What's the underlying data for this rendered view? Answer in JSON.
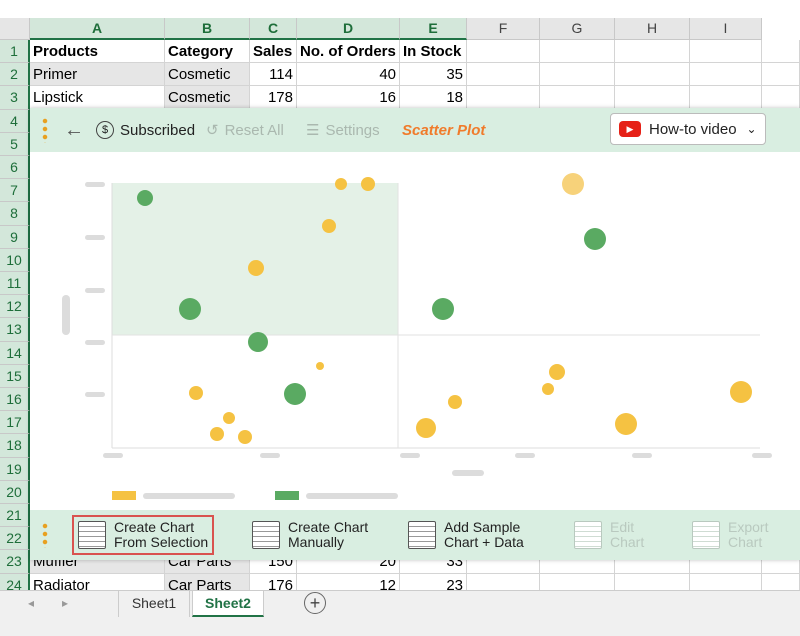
{
  "sheet": {
    "columns": [
      "A",
      "B",
      "C",
      "D",
      "E",
      "F",
      "G",
      "H",
      "I"
    ],
    "row_numbers": [
      1,
      2,
      3,
      4,
      5,
      6,
      7,
      8,
      9,
      10,
      11,
      12,
      13,
      14,
      15,
      16,
      17,
      18,
      19,
      20,
      21,
      22,
      23,
      24
    ],
    "rows": [
      {
        "row": 1,
        "cells": [
          "Products",
          "Category",
          "Sales",
          "No. of Orders",
          "In Stock"
        ]
      },
      {
        "row": 2,
        "cells": [
          "Primer",
          "Cosmetic",
          "114",
          "40",
          "35"
        ]
      },
      {
        "row": 3,
        "cells": [
          "Lipstick",
          "Cosmetic",
          "178",
          "16",
          "18"
        ]
      },
      {
        "row": 23,
        "cells": [
          "Muffler",
          "Car Parts",
          "150",
          "20",
          "33"
        ]
      },
      {
        "row": 24,
        "cells": [
          "Radiator",
          "Car Parts",
          "176",
          "12",
          "23"
        ]
      }
    ],
    "tabs": [
      "Sheet1",
      "Sheet2"
    ],
    "active_tab": 1
  },
  "toolbar": {
    "subscribed": "Subscribed",
    "reset": "Reset All",
    "settings": "Settings",
    "title": "Scatter Plot",
    "video": "How-to video"
  },
  "actions": [
    {
      "lines": [
        "Create Chart",
        "From Selection"
      ],
      "enabled": true
    },
    {
      "lines": [
        "Create Chart",
        "Manually"
      ],
      "enabled": true
    },
    {
      "lines": [
        "Add Sample",
        "Chart + Data"
      ],
      "enabled": true
    },
    {
      "lines": [
        "Edit",
        "Chart"
      ],
      "enabled": false
    },
    {
      "lines": [
        "Export",
        "Chart"
      ],
      "enabled": false
    }
  ]
}
